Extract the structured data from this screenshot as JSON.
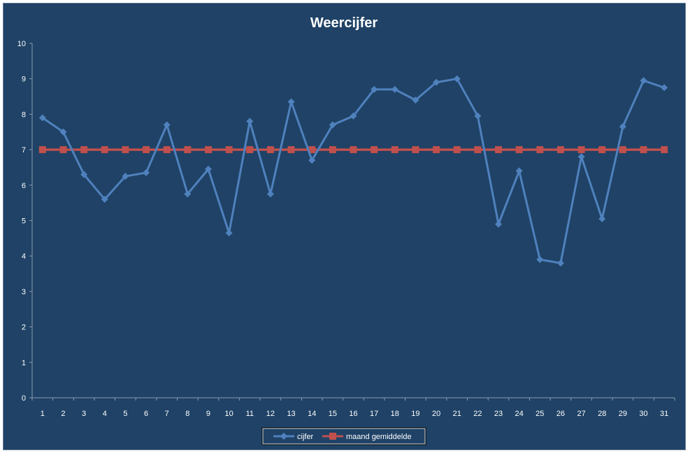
{
  "chart_data": {
    "type": "line",
    "title": "Weercijfer",
    "xlabel": "",
    "ylabel": "",
    "categories": [
      "1",
      "2",
      "3",
      "4",
      "5",
      "6",
      "7",
      "8",
      "9",
      "10",
      "11",
      "12",
      "13",
      "14",
      "15",
      "16",
      "17",
      "18",
      "19",
      "20",
      "21",
      "22",
      "23",
      "24",
      "25",
      "26",
      "27",
      "28",
      "29",
      "30",
      "31"
    ],
    "yticks": [
      "0",
      "1",
      "2",
      "3",
      "4",
      "5",
      "6",
      "7",
      "8",
      "9",
      "10"
    ],
    "ylim": [
      0,
      10
    ],
    "grid": false,
    "legend_position": "bottom",
    "series": [
      {
        "name": "cijfer",
        "marker": "diamond",
        "color": "#4f81bd",
        "values": [
          7.9,
          7.5,
          6.3,
          5.6,
          6.25,
          6.35,
          7.7,
          5.75,
          6.45,
          4.65,
          7.8,
          5.75,
          8.35,
          6.7,
          7.7,
          7.95,
          8.7,
          8.7,
          8.4,
          8.9,
          9.0,
          7.95,
          4.9,
          6.4,
          3.9,
          3.8,
          6.8,
          5.05,
          7.65,
          8.95,
          8.75
        ]
      },
      {
        "name": "maand gemiddelde",
        "marker": "square",
        "color": "#c0504d",
        "values": [
          7.0,
          7.0,
          7.0,
          7.0,
          7.0,
          7.0,
          7.0,
          7.0,
          7.0,
          7.0,
          7.0,
          7.0,
          7.0,
          7.0,
          7.0,
          7.0,
          7.0,
          7.0,
          7.0,
          7.0,
          7.0,
          7.0,
          7.0,
          7.0,
          7.0,
          7.0,
          7.0,
          7.0,
          7.0,
          7.0,
          7.0
        ]
      }
    ]
  }
}
